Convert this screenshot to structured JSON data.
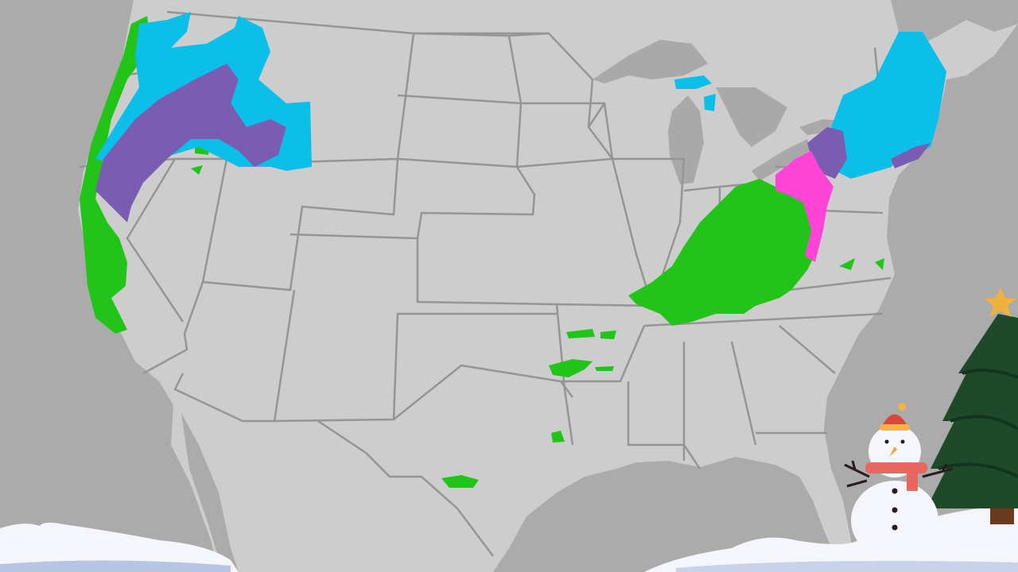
{
  "map": {
    "region": "contiguous-united-states",
    "colors": {
      "ocean": "#ababab",
      "land": "#cdcdcd",
      "lakes": "#a9a9a9",
      "borders": "#959595",
      "rain": "#22c41a",
      "snow": "#0bbfe8",
      "mixed": "#7a5cb2",
      "ice": "#ff44d8"
    },
    "precipitation_layers": [
      "rain",
      "snow",
      "mixed",
      "ice"
    ]
  },
  "decorations": {
    "icons": [
      "snowman-icon",
      "christmas-tree-icon",
      "star-icon",
      "snow-bank-icon"
    ]
  }
}
